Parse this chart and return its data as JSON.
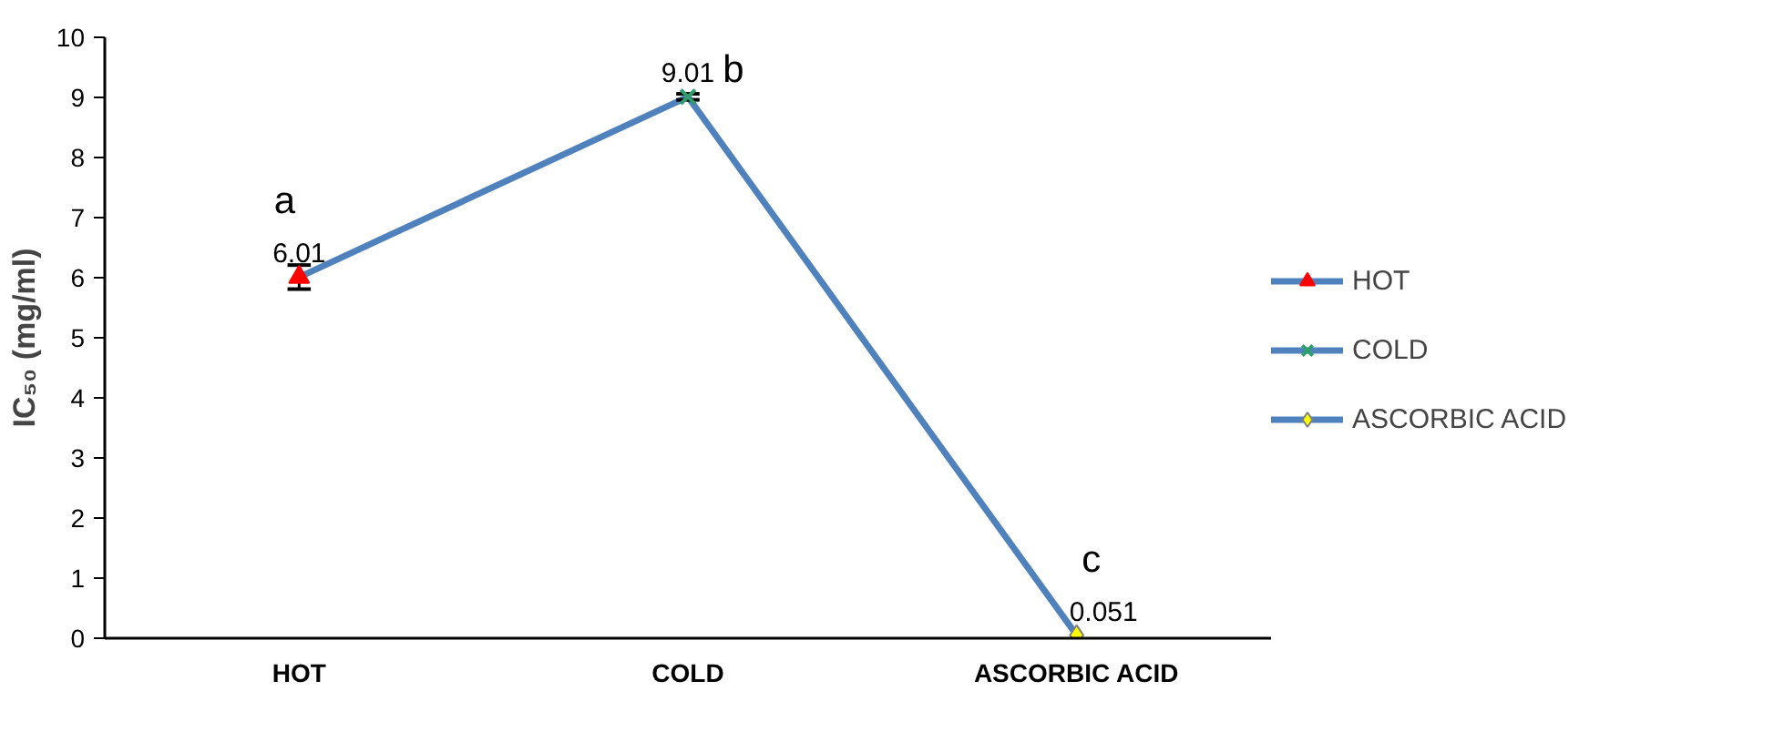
{
  "chart_data": {
    "type": "line",
    "ylabel": "IC₅₀ (mg/ml)",
    "categories": [
      "HOT",
      "COLD",
      "ASCORBIC ACID"
    ],
    "series": [
      {
        "color": "#4f81bd",
        "values": [
          6.01,
          9.01,
          0.051
        ],
        "errors": [
          0.2,
          0.05,
          null
        ],
        "marker": "none"
      },
      {
        "type": "scatter",
        "name": "HOT",
        "color": "#ff0000",
        "x": [
          "HOT"
        ],
        "values": [
          6.01
        ],
        "marker": "triangle"
      },
      {
        "type": "scatter",
        "name": "COLD",
        "color": "#2e9e6e",
        "x": [
          "COLD"
        ],
        "values": [
          9.01
        ],
        "marker": "cross"
      },
      {
        "type": "scatter",
        "name": "ASCORBIC ACID",
        "color": "#ffff00",
        "x": [
          "ASCORBIC ACID"
        ],
        "values": [
          0.051
        ],
        "marker": "diamond"
      }
    ],
    "value_labels": [
      "6.01",
      "9.01",
      "0.051"
    ],
    "annotations": [
      {
        "text": "a",
        "x": "HOT",
        "y": 6.01
      },
      {
        "text": "b",
        "x": "COLD",
        "y": 9.01
      },
      {
        "text": "c",
        "x": "ASCORBIC ACID",
        "y": 0.051
      }
    ],
    "ylim": [
      0,
      10
    ],
    "yticks": [
      0,
      1,
      2,
      3,
      4,
      5,
      6,
      7,
      8,
      9,
      10
    ],
    "grid": false,
    "legend": "right"
  }
}
